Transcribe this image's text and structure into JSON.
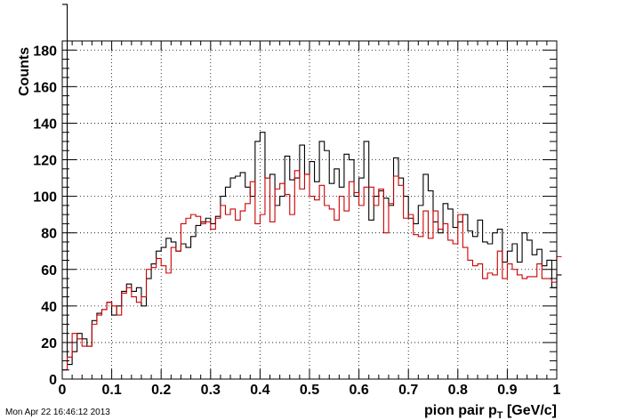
{
  "timestamp": "Mon Apr 22 16:46:12 2013",
  "chart_data": {
    "type": "histogram-step",
    "xlabel": "pion pair p",
    "xlabel_sub": "T",
    "xlabel_unit": " [GeV/c]",
    "ylabel": "Counts",
    "xlim": [
      0,
      1
    ],
    "ylim": [
      0,
      185
    ],
    "grid": true,
    "x_ticks": [
      "0",
      "0.1",
      "0.2",
      "0.3",
      "0.4",
      "0.5",
      "0.6",
      "0.7",
      "0.8",
      "0.9",
      "1"
    ],
    "y_ticks": [
      "0",
      "20",
      "40",
      "60",
      "80",
      "100",
      "120",
      "140",
      "160",
      "180"
    ],
    "bin_width": 0.01,
    "series": [
      {
        "color": "#000000",
        "values": [
          205,
          8,
          15,
          25,
          22,
          18,
          32,
          36,
          38,
          42,
          35,
          40,
          48,
          52,
          48,
          50,
          40,
          55,
          63,
          70,
          72,
          77,
          75,
          70,
          74,
          72,
          78,
          84,
          86,
          88,
          85,
          89,
          100,
          105,
          110,
          111,
          113,
          105,
          100,
          130,
          135,
          110,
          112,
          95,
          100,
          122,
          109,
          110,
          128,
          112,
          119,
          108,
          130,
          125,
          107,
          115,
          105,
          123,
          120,
          100,
          110,
          130,
          87,
          100,
          103,
          99,
          95,
          121,
          110,
          100,
          88,
          85,
          95,
          112,
          103,
          86,
          80,
          96,
          93,
          83,
          86,
          90,
          81,
          78,
          87,
          75,
          74,
          80,
          82,
          64,
          70,
          74,
          64,
          80,
          76,
          68,
          71,
          62,
          65,
          50,
          57
        ]
      },
      {
        "color": "#cc0000",
        "values": [
          5,
          12,
          25,
          22,
          18,
          18,
          30,
          35,
          38,
          42,
          40,
          35,
          47,
          50,
          45,
          42,
          45,
          60,
          61,
          66,
          62,
          58,
          72,
          70,
          85,
          88,
          90,
          89,
          85,
          86,
          82,
          88,
          95,
          90,
          93,
          87,
          92,
          96,
          108,
          85,
          90,
          110,
          86,
          104,
          107,
          101,
          90,
          114,
          104,
          112,
          100,
          98,
          106,
          95,
          93,
          87,
          100,
          92,
          108,
          102,
          95,
          105,
          105,
          95,
          104,
          80,
          96,
          111,
          106,
          88,
          90,
          79,
          78,
          92,
          77,
          92,
          82,
          85,
          76,
          74,
          90,
          72,
          65,
          62,
          63,
          55,
          58,
          57,
          70,
          55,
          63,
          60,
          57,
          55,
          56,
          56,
          63,
          55,
          55,
          53,
          67
        ]
      }
    ]
  }
}
